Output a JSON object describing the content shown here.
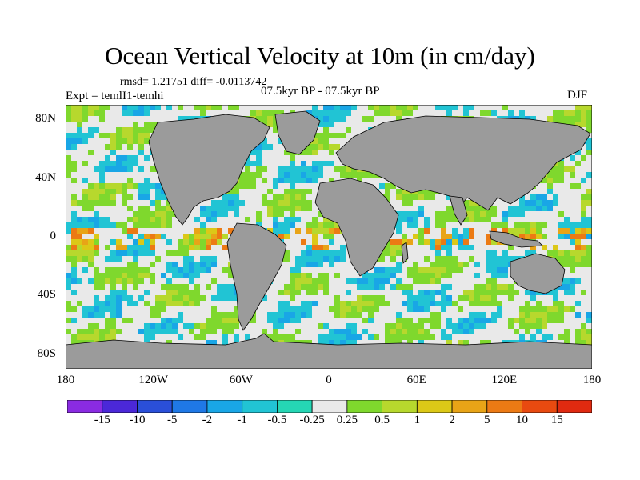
{
  "title": "Ocean Vertical Velocity at 10m (in cm/day)",
  "stats": "rmsd= 1.21751  diff= -0.0113742",
  "expt": "Expt = temlI1-temhi",
  "period": "07.5kyr BP - 07.5kyr BP",
  "season": "DJF",
  "lat_ticks": [
    {
      "label": "80N",
      "lat": 80
    },
    {
      "label": "40N",
      "lat": 40
    },
    {
      "label": "0",
      "lat": 0
    },
    {
      "label": "40S",
      "lat": -40
    },
    {
      "label": "80S",
      "lat": -80
    }
  ],
  "lon_ticks": [
    {
      "label": "180",
      "lon": -180
    },
    {
      "label": "120W",
      "lon": -120
    },
    {
      "label": "60W",
      "lon": -60
    },
    {
      "label": "0",
      "lon": 0
    },
    {
      "label": "60E",
      "lon": 60
    },
    {
      "label": "120E",
      "lon": 120
    },
    {
      "label": "180",
      "lon": 180
    }
  ],
  "colorbar": {
    "labels": [
      "-15",
      "-10",
      "-5",
      "-2",
      "-1",
      "-0.5",
      "-0.25",
      "0.25",
      "0.5",
      "1",
      "2",
      "5",
      "10",
      "15"
    ],
    "colors": [
      "#8a2be2",
      "#4b28d8",
      "#2a4fd9",
      "#1f78e6",
      "#19a6e6",
      "#21c4d4",
      "#25d6b4",
      "#e9e9e9",
      "#7fd82d",
      "#b7d82d",
      "#dcc817",
      "#e8a417",
      "#ec7a14",
      "#e84a10",
      "#e02a10"
    ]
  },
  "map": {
    "land_color": "#9b9b9b",
    "ocean_base_color": "#e9e9e9",
    "projection": "cylindrical-equidistant",
    "lon_range": [
      -180,
      180
    ],
    "lat_range": [
      -90,
      90
    ]
  }
}
